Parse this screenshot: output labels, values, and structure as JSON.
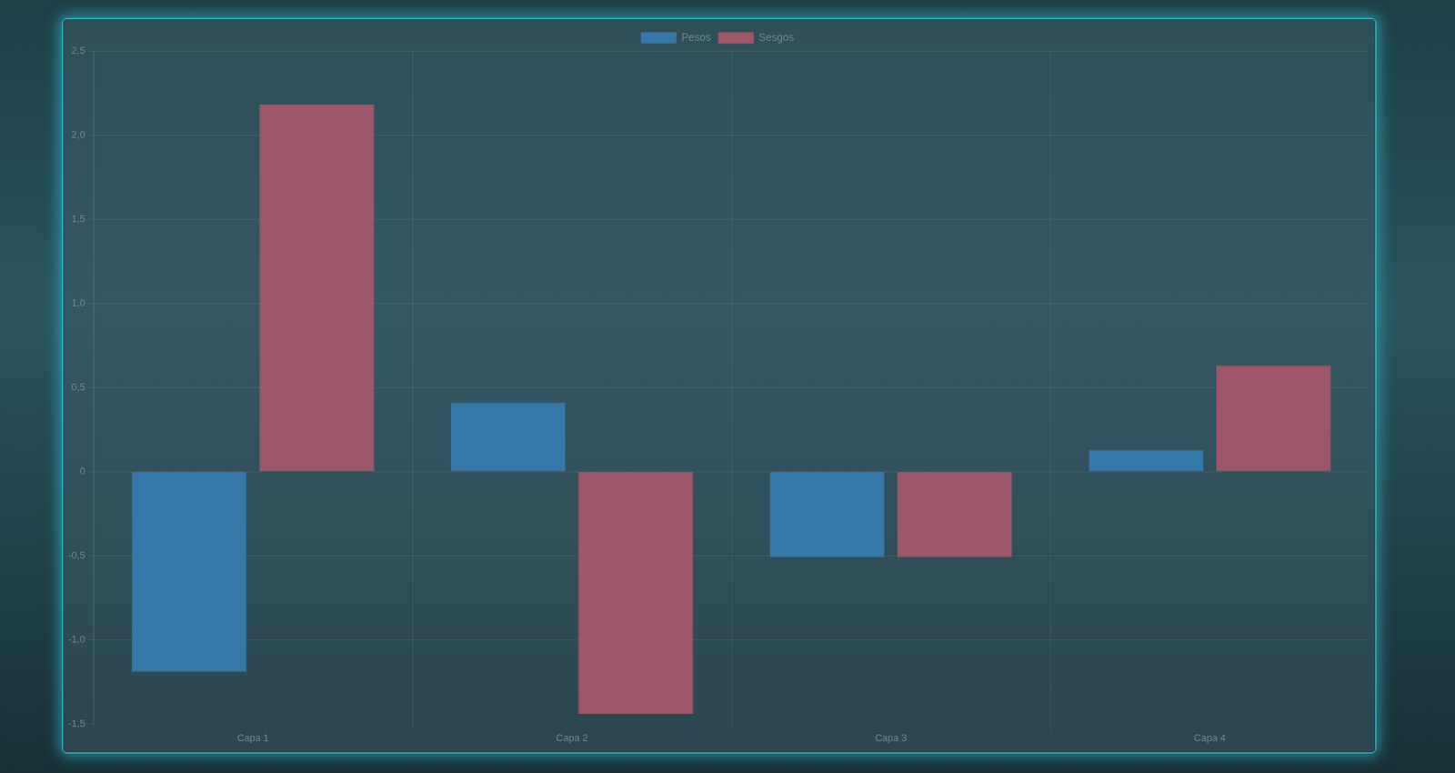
{
  "chart_data": {
    "type": "bar",
    "categories": [
      "Capa 1",
      "Capa 2",
      "Capa 3",
      "Capa 4"
    ],
    "series": [
      {
        "name": "Pesos",
        "color": "#3678a8",
        "values": [
          -1.19,
          0.41,
          -0.51,
          0.13
        ]
      },
      {
        "name": "Sesgos",
        "color": "#9e566a",
        "values": [
          2.18,
          -1.44,
          -0.51,
          0.63
        ]
      }
    ],
    "ylim": [
      -1.5,
      2.5
    ],
    "yticks": [
      {
        "value": -1.5,
        "label": "-1,5"
      },
      {
        "value": -1,
        "label": "-1,0"
      },
      {
        "value": -0.5,
        "label": "-0,5"
      },
      0,
      {
        "value": 0.5,
        "label": "0,5"
      },
      {
        "value": 1,
        "label": "1,0"
      },
      {
        "value": 1.5,
        "label": "1,5"
      },
      {
        "value": 2,
        "label": "2,0"
      },
      {
        "value": 2.5,
        "label": "2,5"
      }
    ],
    "grid": true,
    "legend": "top"
  }
}
